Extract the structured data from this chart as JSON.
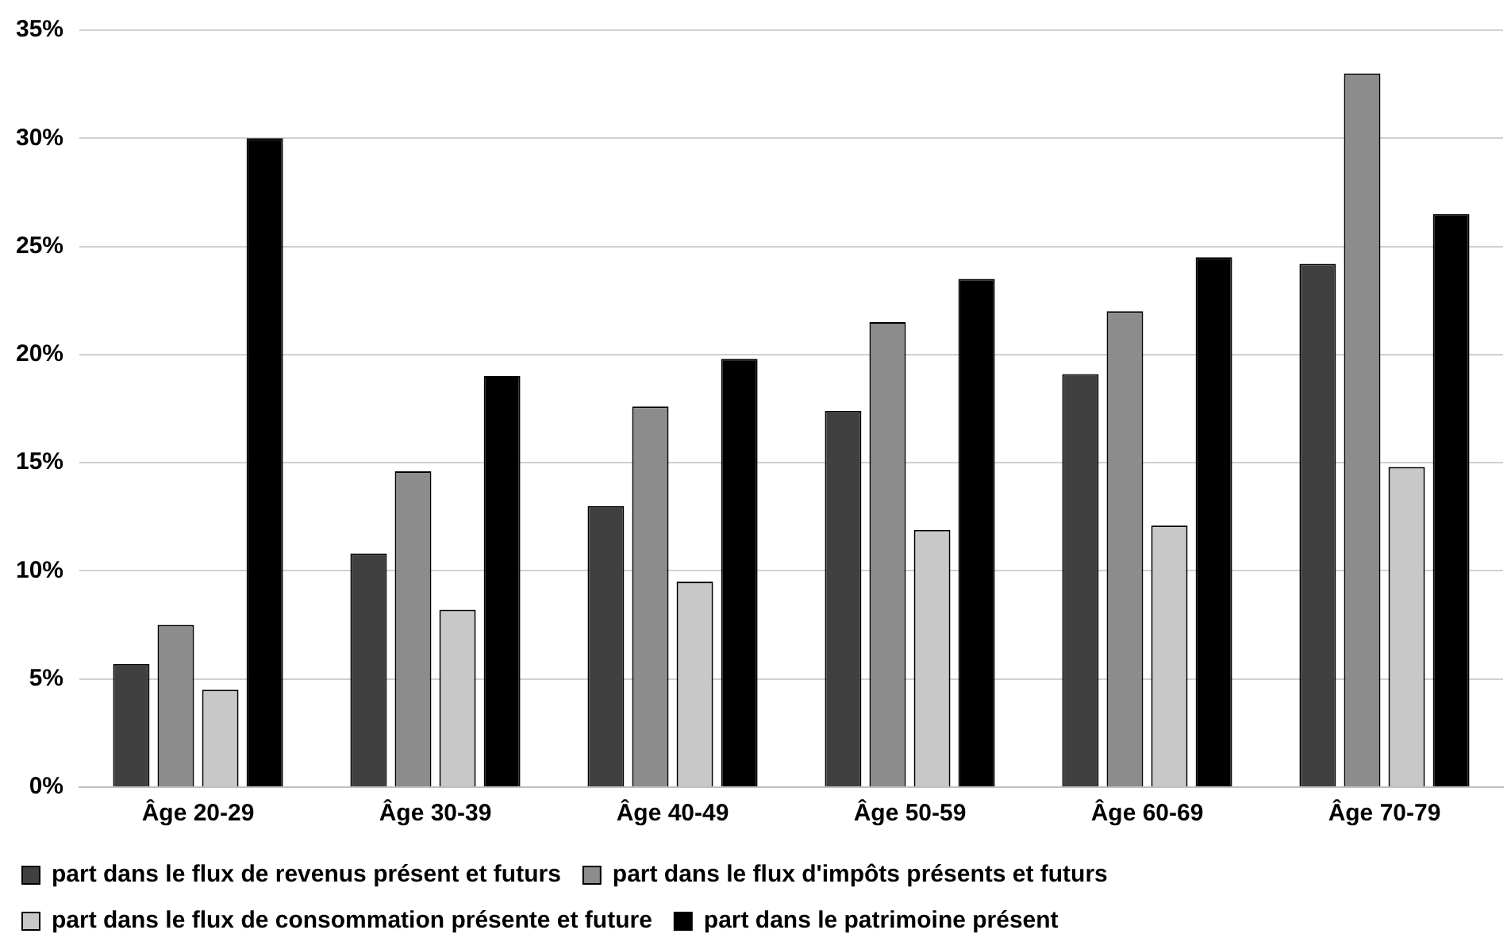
{
  "chart_data": {
    "type": "bar",
    "categories": [
      "Âge 20-29",
      "Âge 30-39",
      "Âge 40-49",
      "Âge 50-59",
      "Âge 60-69",
      "Âge 70-79"
    ],
    "series": [
      {
        "name": "part dans le flux de revenus présent et futurs",
        "color": "#404040",
        "values": [
          5.7,
          10.8,
          13.0,
          17.4,
          19.1,
          24.2
        ]
      },
      {
        "name": "part dans le flux d'impôts présents et futurs",
        "color": "#8c8c8c",
        "values": [
          7.5,
          14.6,
          17.6,
          21.5,
          22.0,
          33.0
        ]
      },
      {
        "name": "part dans le flux de consommation présente et future",
        "color": "#c8c8c8",
        "values": [
          4.5,
          8.2,
          9.5,
          11.9,
          12.1,
          14.8
        ]
      },
      {
        "name": "part dans le patrimoine présent",
        "color": "#000000",
        "values": [
          30.0,
          19.0,
          19.8,
          23.5,
          24.5,
          26.5
        ]
      }
    ],
    "ylim": [
      0,
      35
    ],
    "yticks": [
      {
        "value": 0,
        "label": "0%"
      },
      {
        "value": 5,
        "label": "5%"
      },
      {
        "value": 10,
        "label": "10%"
      },
      {
        "value": 15,
        "label": "15%"
      },
      {
        "value": 20,
        "label": "20%"
      },
      {
        "value": 25,
        "label": "25%"
      },
      {
        "value": 30,
        "label": "30%"
      },
      {
        "value": 35,
        "label": "35%"
      }
    ],
    "grid": "y",
    "legend": "bottom"
  }
}
